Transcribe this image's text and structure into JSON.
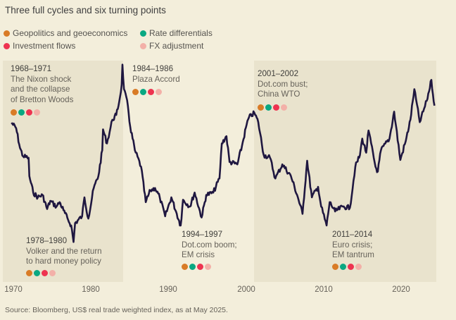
{
  "title": "Three full cycles and six turning points",
  "legend": [
    {
      "label": "Geopolitics and geoeconomics",
      "color": "#d97b26"
    },
    {
      "label": "Rate differentials",
      "color": "#0aa882"
    },
    {
      "label": "Investment flows",
      "color": "#ee3350"
    },
    {
      "label": "FX adjustment",
      "color": "#f3b0a8"
    }
  ],
  "annotations": [
    {
      "years": "1968–1971",
      "lines": [
        "The Nixon shock",
        "and the collapse",
        "of Bretton Woods"
      ]
    },
    {
      "years": "1984–1986",
      "lines": [
        "Plaza Accord"
      ]
    },
    {
      "years": "2001–2002",
      "lines": [
        "Dot.com bust;",
        "China WTO"
      ]
    },
    {
      "years": "1978–1980",
      "lines": [
        "Volker and the return",
        "to hard money policy"
      ]
    },
    {
      "years": "1994–1997",
      "lines": [
        "Dot.com boom;",
        "EM crisis"
      ]
    },
    {
      "years": "2011–2014",
      "lines": [
        "Euro crisis;",
        "EM tantrum"
      ]
    }
  ],
  "source": "Source: Bloomberg, US$ real trade weighted index, as at May 2025.",
  "chart_data": {
    "type": "line",
    "title": "Three full cycles and six turning points",
    "xlabel": "",
    "ylabel": "US$ real trade weighted index",
    "xlim": [
      1969.5,
      2025
    ],
    "ylim": [
      60,
      140
    ],
    "x_ticks": [
      "1970",
      "1980",
      "1990",
      "2000",
      "2010",
      "2020"
    ],
    "line_color": "#1f1740",
    "shaded_periods": [
      [
        1968.8,
        1984.2
      ],
      [
        2001.0,
        2024.5
      ]
    ],
    "series": [
      {
        "name": "US$ real trade weighted index (approx.)",
        "points": [
          [
            1969.8,
            120.2
          ],
          [
            1970.4,
            118.4
          ],
          [
            1970.9,
            111.8
          ],
          [
            1971.3,
            109.0
          ],
          [
            1972.0,
            108.5
          ],
          [
            1972.1,
            102.4
          ],
          [
            1972.6,
            96.9
          ],
          [
            1973.2,
            95.3
          ],
          [
            1973.8,
            96.1
          ],
          [
            1974.4,
            91.4
          ],
          [
            1974.8,
            94.1
          ],
          [
            1975.6,
            92.2
          ],
          [
            1976.0,
            93.7
          ],
          [
            1976.5,
            91.0
          ],
          [
            1977.1,
            87.8
          ],
          [
            1977.5,
            85.9
          ],
          [
            1977.8,
            80.4
          ],
          [
            1978.0,
            86.7
          ],
          [
            1978.9,
            89.0
          ],
          [
            1979.2,
            95.3
          ],
          [
            1979.7,
            88.2
          ],
          [
            1980.4,
            98.4
          ],
          [
            1981.0,
            102.4
          ],
          [
            1981.5,
            111.0
          ],
          [
            1981.6,
            118.0
          ],
          [
            1982.1,
            113.3
          ],
          [
            1982.8,
            121.2
          ],
          [
            1983.3,
            122.8
          ],
          [
            1983.7,
            127.5
          ],
          [
            1984.0,
            132.9
          ],
          [
            1984.1,
            139.6
          ],
          [
            1984.3,
            131.4
          ],
          [
            1984.8,
            125.9
          ],
          [
            1985.1,
            118.8
          ],
          [
            1985.7,
            111.0
          ],
          [
            1986.5,
            105.5
          ],
          [
            1987.1,
            93.7
          ],
          [
            1987.7,
            97.6
          ],
          [
            1988.3,
            98.4
          ],
          [
            1988.9,
            95.3
          ],
          [
            1989.6,
            89.0
          ],
          [
            1990.4,
            95.3
          ],
          [
            1991.0,
            90.6
          ],
          [
            1991.6,
            85.9
          ],
          [
            1991.9,
            94.5
          ],
          [
            1992.8,
            92.2
          ],
          [
            1993.4,
            96.9
          ],
          [
            1994.3,
            88.6
          ],
          [
            1994.9,
            96.1
          ],
          [
            1995.8,
            96.9
          ],
          [
            1996.6,
            101.6
          ],
          [
            1996.9,
            113.3
          ],
          [
            1997.5,
            115.7
          ],
          [
            1997.9,
            107.1
          ],
          [
            1998.9,
            106.3
          ],
          [
            1999.5,
            112.5
          ],
          [
            2000.1,
            119.6
          ],
          [
            2000.4,
            122.0
          ],
          [
            2001.1,
            123.5
          ],
          [
            2001.6,
            120.4
          ],
          [
            2002.3,
            109.4
          ],
          [
            2003.1,
            108.6
          ],
          [
            2003.8,
            101.6
          ],
          [
            2004.7,
            106.3
          ],
          [
            2005.8,
            102.4
          ],
          [
            2006.7,
            95.3
          ],
          [
            2007.3,
            89.8
          ],
          [
            2007.9,
            107.5
          ],
          [
            2008.5,
            95.3
          ],
          [
            2009.3,
            98.8
          ],
          [
            2009.7,
            92.2
          ],
          [
            2010.4,
            85.9
          ],
          [
            2010.8,
            93.7
          ],
          [
            2011.5,
            90.6
          ],
          [
            2012.5,
            92.2
          ],
          [
            2013.4,
            91.8
          ],
          [
            2014.1,
            105.5
          ],
          [
            2014.7,
            109.4
          ],
          [
            2015.0,
            114.9
          ],
          [
            2015.5,
            110.2
          ],
          [
            2015.8,
            117.6
          ],
          [
            2016.7,
            105.5
          ],
          [
            2017.0,
            103.9
          ],
          [
            2017.4,
            111.0
          ],
          [
            2018.5,
            114.9
          ],
          [
            2019.1,
            123.9
          ],
          [
            2019.9,
            107.8
          ],
          [
            2020.6,
            114.1
          ],
          [
            2021.2,
            121.2
          ],
          [
            2021.7,
            131.4
          ],
          [
            2022.4,
            120.4
          ],
          [
            2023.3,
            127.5
          ],
          [
            2023.9,
            134.5
          ],
          [
            2024.3,
            125.9
          ]
        ]
      }
    ]
  }
}
